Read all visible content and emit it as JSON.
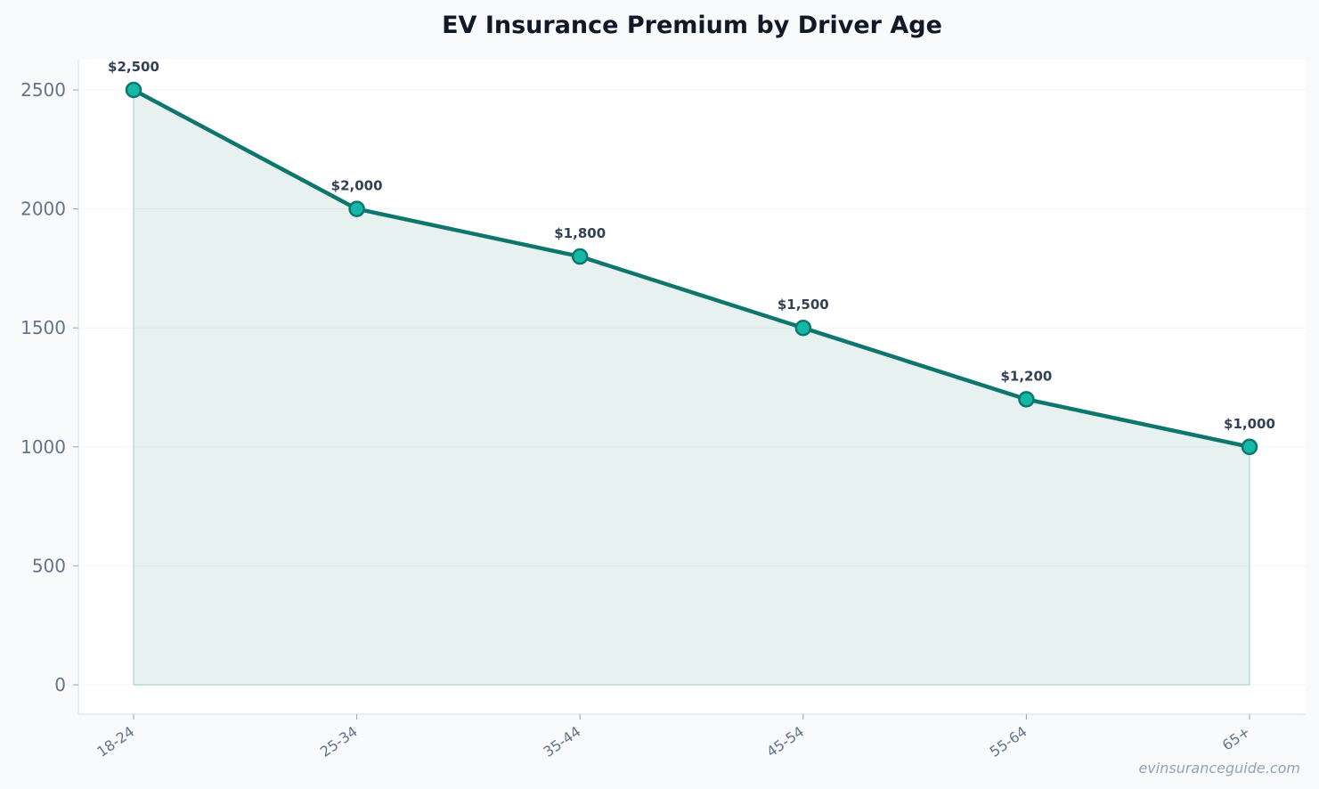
{
  "chart_data": {
    "type": "area",
    "title": "EV Insurance Premium by Driver Age",
    "xlabel": "",
    "ylabel": "",
    "categories": [
      "18-24",
      "25-34",
      "35-44",
      "45-54",
      "55-64",
      "65+"
    ],
    "series": [
      {
        "values": [
          2500,
          2000,
          1800,
          1500,
          1200,
          1000
        ],
        "data_labels": [
          "$2,500",
          "$2,000",
          "$1,800",
          "$1,500",
          "$1,200",
          "$1,000"
        ]
      }
    ],
    "ylim": [
      -120,
      2630
    ],
    "yticks": [
      0,
      500,
      1000,
      1500,
      2000,
      2500
    ],
    "yticks_labels": [
      "0",
      "500",
      "1000",
      "1500",
      "2000",
      "2500"
    ],
    "grid": true,
    "legend": "none",
    "colors": {
      "line": "#0f766e",
      "fill": "#0f766e",
      "marker_fill": "#14b8a6",
      "marker_edge": "#0f766e",
      "grid": "#f1f5f9",
      "axis": "#e2e8f0",
      "plot_bg": "#ffffff",
      "page_bg": "#f8fafc"
    }
  },
  "watermark": "evinsuranceguide.com"
}
